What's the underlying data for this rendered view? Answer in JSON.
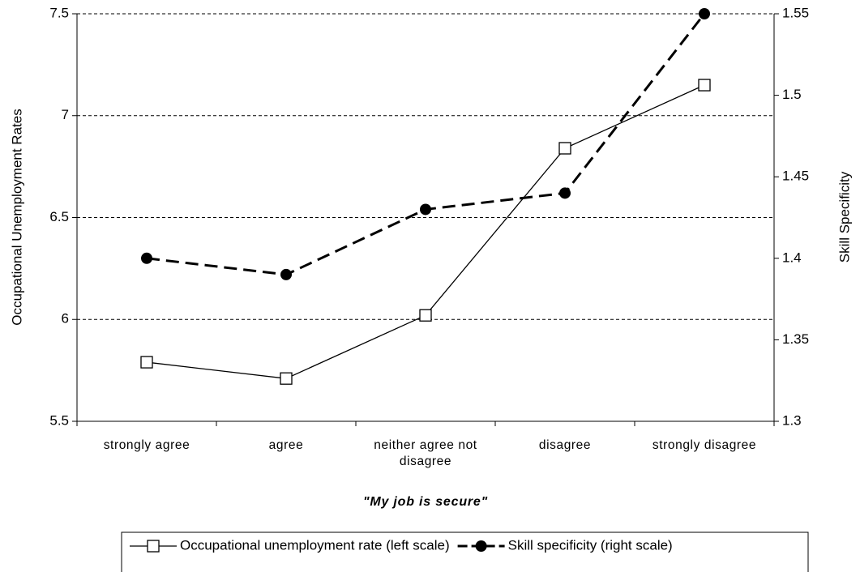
{
  "chart_data": {
    "type": "line",
    "xlabel": "\"My job is secure\"",
    "ylabel": "Occupational Unemployment Rates",
    "y2label": "Skill Specificity",
    "categories": [
      "strongly agree",
      "agree",
      "neither agree not disagree",
      "disagree",
      "strongly disagree"
    ],
    "series": [
      {
        "name": "Occupational unemployment rate (left scale)",
        "color": "#000000",
        "values": [
          5.79,
          5.71,
          6.02,
          6.84,
          7.15
        ]
      },
      {
        "name": "Skill specificity (right scale)",
        "color": "#000000",
        "axis": "y2",
        "values": [
          1.4,
          1.39,
          1.43,
          1.44,
          1.55
        ]
      }
    ],
    "ylim": [
      5.5,
      7.5
    ],
    "yticks": [
      5.5,
      6,
      6.5,
      7,
      7.5
    ],
    "y2lim": [
      1.3,
      1.55
    ],
    "y2ticks": [
      1.3,
      1.35,
      1.4,
      1.45,
      1.5,
      1.55
    ],
    "grid": true,
    "legend": "bottom"
  }
}
